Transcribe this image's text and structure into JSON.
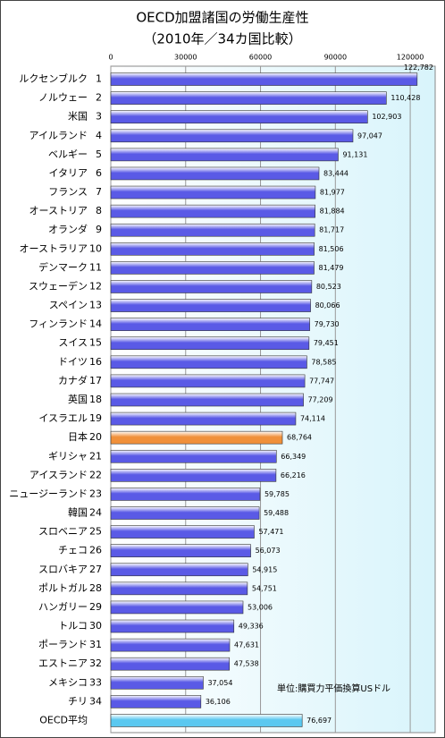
{
  "chart_data": {
    "type": "bar",
    "orientation": "horizontal",
    "title": "OECD加盟諸国の労働生産性",
    "subtitle": "（2010年／34カ国比較）",
    "annotation": "単位:購買力平価換算USドル",
    "categories": [
      "ルクセンブルク",
      "ノルウェー",
      "米国",
      "アイルランド",
      "ベルギー",
      "イタリア",
      "フランス",
      "オーストリア",
      "オランダ",
      "オーストラリア",
      "デンマーク",
      "スウェーデン",
      "スペイン",
      "フィンランド",
      "スイス",
      "ドイツ",
      "カナダ",
      "英国",
      "イスラエル",
      "日本",
      "ギリシャ",
      "アイスランド",
      "ニュージーランド",
      "韓国",
      "スロベニア",
      "チェコ",
      "スロバキア",
      "ポルトガル",
      "ハンガリー",
      "トルコ",
      "ポーランド",
      "エストニア",
      "メキシコ",
      "チリ",
      "OECD平均"
    ],
    "ranks": [
      1,
      2,
      3,
      4,
      5,
      6,
      7,
      8,
      9,
      10,
      11,
      12,
      13,
      14,
      15,
      16,
      17,
      18,
      19,
      20,
      21,
      22,
      23,
      24,
      25,
      26,
      27,
      28,
      29,
      30,
      31,
      32,
      33,
      34,
      null
    ],
    "values": [
      122782,
      110428,
      102903,
      97047,
      91131,
      83444,
      81977,
      81884,
      81717,
      81506,
      81479,
      80523,
      80066,
      79730,
      79451,
      78585,
      77747,
      77209,
      74114,
      68764,
      66349,
      66216,
      59785,
      59488,
      57471,
      56073,
      54915,
      54751,
      53006,
      49336,
      47631,
      47538,
      37054,
      36106,
      76697
    ],
    "value_labels": [
      "122,782",
      "110,428",
      "102,903",
      "97,047",
      "91,131",
      "83,444",
      "81,977",
      "81,884",
      "81,717",
      "81,506",
      "81,479",
      "80,523",
      "80,066",
      "79,730",
      "79,451",
      "78,585",
      "77,747",
      "77,209",
      "74,114",
      "68,764",
      "66,349",
      "66,216",
      "59,785",
      "59,488",
      "57,471",
      "56,073",
      "54,915",
      "54,751",
      "53,006",
      "49,336",
      "47,631",
      "47,538",
      "37,054",
      "36,106",
      "76,697"
    ],
    "colors": [
      "#5a5ae6",
      "#5a5ae6",
      "#5a5ae6",
      "#5a5ae6",
      "#5a5ae6",
      "#5a5ae6",
      "#5a5ae6",
      "#5a5ae6",
      "#5a5ae6",
      "#5a5ae6",
      "#5a5ae6",
      "#5a5ae6",
      "#5a5ae6",
      "#5a5ae6",
      "#5a5ae6",
      "#5a5ae6",
      "#5a5ae6",
      "#5a5ae6",
      "#5a5ae6",
      "#f0903a",
      "#5a5ae6",
      "#5a5ae6",
      "#5a5ae6",
      "#5a5ae6",
      "#5a5ae6",
      "#5a5ae6",
      "#5a5ae6",
      "#5a5ae6",
      "#5a5ae6",
      "#5a5ae6",
      "#5a5ae6",
      "#5a5ae6",
      "#5a5ae6",
      "#5a5ae6",
      "#5ac8f0"
    ],
    "xlim": [
      0,
      130000
    ],
    "xticks": [
      0,
      30000,
      60000,
      90000,
      120000
    ],
    "grid": true
  }
}
